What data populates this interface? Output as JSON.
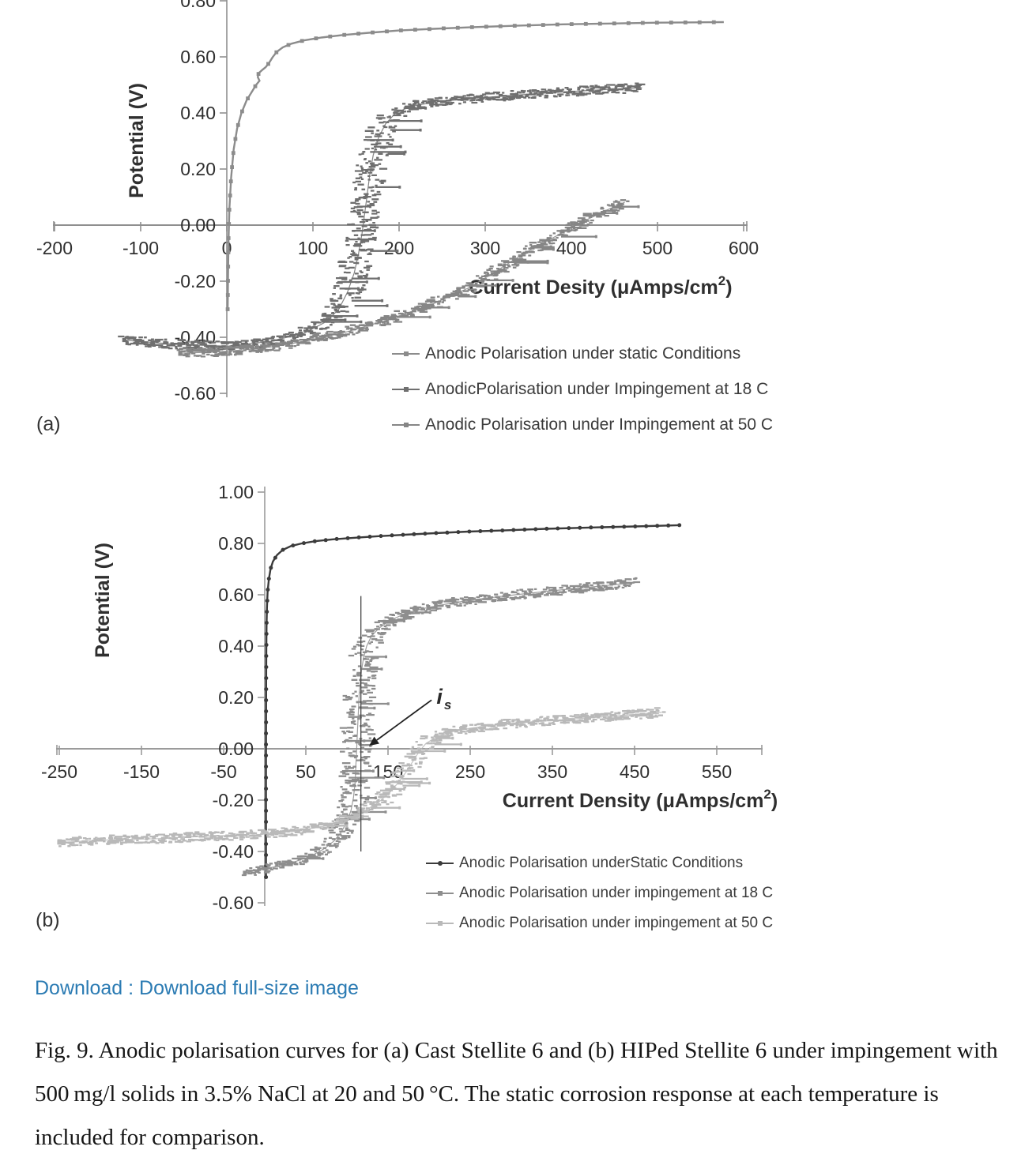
{
  "download": {
    "label": "Download : Download full-size image",
    "color": "#2b7bb3"
  },
  "caption": {
    "text": "Fig. 9. Anodic polarisation curves for (a) Cast Stellite 6 and (b) HIPed Stellite 6 under impingement with 500 mg/l solids in 3.5% NaCl at 20 and 50 °C. The static corrosion response at each temperature is included for comparison."
  },
  "chart_data": [
    {
      "id": "a",
      "type": "scatter",
      "panel_label": "(a)",
      "title": "",
      "xlabel_pre": "Current Desity (μAmps/cm",
      "xlabel_sup": "2",
      "xlabel_post": ")",
      "ylabel": "Potential (V)",
      "xlim": [
        -200,
        600
      ],
      "ylim": [
        -0.6,
        0.8
      ],
      "grid": false,
      "legend_position": "inside-lower-right",
      "x_tick_values": [
        -200,
        -100,
        0,
        100,
        200,
        300,
        400,
        500,
        600
      ],
      "x_tick_labels": [
        "-200",
        "-100",
        "0",
        "100",
        "200",
        "300",
        "400",
        "500",
        "600"
      ],
      "y_tick_values": [
        0.8,
        0.6,
        0.4,
        0.2,
        0.0,
        -0.2,
        -0.4,
        -0.6
      ],
      "y_tick_labels": [
        "0.80",
        "0.60",
        "0.40",
        "0.20",
        "0.00",
        "-0.20",
        "-0.40",
        "-0.60"
      ],
      "axis_color": "#8f8f8f",
      "series": [
        {
          "name": "Anodic Polarisation under static Conditions",
          "style": "smooth",
          "marker": "square",
          "color": "#8c8c8c",
          "points": [
            [
              1,
              -0.3
            ],
            [
              1.5,
              -0.17
            ],
            [
              2,
              -0.05
            ],
            [
              3,
              0.06
            ],
            [
              5,
              0.17
            ],
            [
              8,
              0.27
            ],
            [
              12,
              0.345
            ],
            [
              17,
              0.4
            ],
            [
              23,
              0.445
            ],
            [
              29,
              0.475
            ],
            [
              34,
              0.5
            ],
            [
              38,
              0.515
            ],
            [
              36,
              0.528
            ],
            [
              37,
              0.542
            ],
            [
              41,
              0.553
            ],
            [
              45,
              0.563
            ],
            [
              49,
              0.578
            ],
            [
              53,
              0.598
            ],
            [
              58,
              0.618
            ],
            [
              65,
              0.634
            ],
            [
              75,
              0.647
            ],
            [
              90,
              0.659
            ],
            [
              110,
              0.669
            ],
            [
              135,
              0.678
            ],
            [
              165,
              0.686
            ],
            [
              200,
              0.694
            ],
            [
              240,
              0.7
            ],
            [
              285,
              0.706
            ],
            [
              335,
              0.711
            ],
            [
              390,
              0.716
            ],
            [
              445,
              0.719
            ],
            [
              500,
              0.722
            ],
            [
              545,
              0.723
            ],
            [
              577,
              0.724
            ]
          ]
        },
        {
          "name": "AnodicPolarisation under Impingement at 18 C",
          "style": "noisy",
          "marker": "square",
          "color": "#6f6f6f",
          "points": [
            [
              -119,
              -0.41
            ],
            [
              -60,
              -0.425
            ],
            [
              0,
              -0.432
            ],
            [
              50,
              -0.415
            ],
            [
              90,
              -0.385
            ],
            [
              115,
              -0.345
            ],
            [
              130,
              -0.3
            ],
            [
              140,
              -0.24
            ],
            [
              148,
              -0.17
            ],
            [
              153,
              -0.1
            ],
            [
              157,
              -0.03
            ],
            [
              160,
              0.04
            ],
            [
              163,
              0.11
            ],
            [
              166,
              0.18
            ],
            [
              170,
              0.25
            ],
            [
              176,
              0.31
            ],
            [
              184,
              0.36
            ],
            [
              196,
              0.4
            ],
            [
              215,
              0.425
            ],
            [
              245,
              0.44
            ],
            [
              285,
              0.452
            ],
            [
              330,
              0.462
            ],
            [
              375,
              0.472
            ],
            [
              420,
              0.48
            ],
            [
              460,
              0.487
            ],
            [
              482,
              0.49
            ]
          ]
        },
        {
          "name": "Anodic Polarisation under Impingement at 50 C",
          "style": "noisy",
          "marker": "square",
          "color": "#868686",
          "points": [
            [
              -54,
              -0.457
            ],
            [
              -10,
              -0.452
            ],
            [
              40,
              -0.44
            ],
            [
              90,
              -0.415
            ],
            [
              140,
              -0.38
            ],
            [
              190,
              -0.335
            ],
            [
              240,
              -0.28
            ],
            [
              280,
              -0.225
            ],
            [
              310,
              -0.17
            ],
            [
              335,
              -0.12
            ],
            [
              360,
              -0.075
            ],
            [
              385,
              -0.035
            ],
            [
              405,
              0.0
            ],
            [
              425,
              0.03
            ],
            [
              442,
              0.055
            ],
            [
              455,
              0.072
            ],
            [
              462,
              0.082
            ]
          ]
        }
      ]
    },
    {
      "id": "b",
      "type": "scatter",
      "panel_label": "(b)",
      "title": "",
      "xlabel_pre": "Current Density (μAmps/cm",
      "xlabel_sup": "2",
      "xlabel_post": ")",
      "ylabel": "Potential (V)",
      "xlim": [
        -250,
        550
      ],
      "ylim": [
        -0.6,
        1.0
      ],
      "grid": false,
      "legend_position": "inside-lower-right",
      "x_tick_values": [
        -250,
        -150,
        -50,
        50,
        150,
        250,
        350,
        450,
        550
      ],
      "x_tick_labels": [
        "-250",
        "-150",
        "-50",
        "50",
        "150",
        "250",
        "350",
        "450",
        "550"
      ],
      "y_tick_values": [
        1.0,
        0.8,
        0.6,
        0.4,
        0.2,
        0.0,
        -0.2,
        -0.4,
        -0.6
      ],
      "y_tick_labels": [
        "1.00",
        "0.80",
        "0.60",
        "0.40",
        "0.20",
        "0.00",
        "-0.20",
        "-0.40",
        "-0.60"
      ],
      "axis_color": "#9b9b9b",
      "annotation": {
        "text_main": "i",
        "text_sub": "s",
        "label_pos": [
          209,
          0.2
        ],
        "pointer_start": [
          203,
          0.19
        ],
        "pointer_tip": [
          127,
          0.012
        ],
        "vline_x": 117,
        "vline_top": 0.595,
        "vline_bottom": -0.4
      },
      "series": [
        {
          "name": "Anodic Polarisation underStatic Conditions",
          "style": "smooth",
          "marker": "dot",
          "color": "#3b3b3b",
          "points": [
            [
              1.5,
              -0.5
            ],
            [
              1.5,
              -0.35
            ],
            [
              1.5,
              -0.2
            ],
            [
              1.5,
              -0.05
            ],
            [
              1.6,
              0.1
            ],
            [
              1.7,
              0.25
            ],
            [
              1.9,
              0.38
            ],
            [
              2.2,
              0.48
            ],
            [
              2.7,
              0.55
            ],
            [
              3.5,
              0.61
            ],
            [
              5,
              0.66
            ],
            [
              7,
              0.7
            ],
            [
              10,
              0.73
            ],
            [
              15,
              0.755
            ],
            [
              22,
              0.775
            ],
            [
              32,
              0.79
            ],
            [
              45,
              0.8
            ],
            [
              62,
              0.809
            ],
            [
              83,
              0.816
            ],
            [
              108,
              0.822
            ],
            [
              137,
              0.828
            ],
            [
              170,
              0.834
            ],
            [
              207,
              0.84
            ],
            [
              248,
              0.846
            ],
            [
              293,
              0.851
            ],
            [
              342,
              0.857
            ],
            [
              395,
              0.862
            ],
            [
              450,
              0.866
            ],
            [
              505,
              0.871
            ]
          ]
        },
        {
          "name": "Anodic Polarisation under impingement at 18 C",
          "style": "noisy",
          "marker": "square",
          "color": "#8e8e8e",
          "points": [
            [
              -24,
              -0.483
            ],
            [
              5,
              -0.465
            ],
            [
              32,
              -0.445
            ],
            [
              55,
              -0.42
            ],
            [
              72,
              -0.39
            ],
            [
              84,
              -0.36
            ],
            [
              93,
              -0.325
            ],
            [
              100,
              -0.285
            ],
            [
              105,
              -0.24
            ],
            [
              108,
              -0.19
            ],
            [
              110,
              -0.13
            ],
            [
              111,
              -0.06
            ],
            [
              112,
              0.01
            ],
            [
              113,
              0.08
            ],
            [
              114,
              0.15
            ],
            [
              115,
              0.22
            ],
            [
              117,
              0.29
            ],
            [
              120,
              0.35
            ],
            [
              124,
              0.4
            ],
            [
              130,
              0.44
            ],
            [
              139,
              0.47
            ],
            [
              152,
              0.5
            ],
            [
              170,
              0.525
            ],
            [
              195,
              0.548
            ],
            [
              228,
              0.568
            ],
            [
              265,
              0.585
            ],
            [
              305,
              0.6
            ],
            [
              348,
              0.615
            ],
            [
              390,
              0.628
            ],
            [
              428,
              0.64
            ],
            [
              452,
              0.648
            ]
          ]
        },
        {
          "name": "Anodic Polarisation under impingement at 50 C",
          "style": "noisy",
          "marker": "square",
          "color": "#b9b9b9",
          "points": [
            [
              -250,
              -0.365
            ],
            [
              -190,
              -0.355
            ],
            [
              -130,
              -0.35
            ],
            [
              -70,
              -0.34
            ],
            [
              -10,
              -0.335
            ],
            [
              40,
              -0.32
            ],
            [
              75,
              -0.3
            ],
            [
              100,
              -0.275
            ],
            [
              120,
              -0.245
            ],
            [
              138,
              -0.21
            ],
            [
              152,
              -0.17
            ],
            [
              163,
              -0.13
            ],
            [
              172,
              -0.09
            ],
            [
              180,
              -0.05
            ],
            [
              188,
              -0.01
            ],
            [
              196,
              0.02
            ],
            [
              208,
              0.045
            ],
            [
              225,
              0.065
            ],
            [
              250,
              0.08
            ],
            [
              285,
              0.095
            ],
            [
              325,
              0.105
            ],
            [
              370,
              0.115
            ],
            [
              415,
              0.125
            ],
            [
              455,
              0.135
            ],
            [
              483,
              0.142
            ]
          ]
        }
      ]
    }
  ]
}
